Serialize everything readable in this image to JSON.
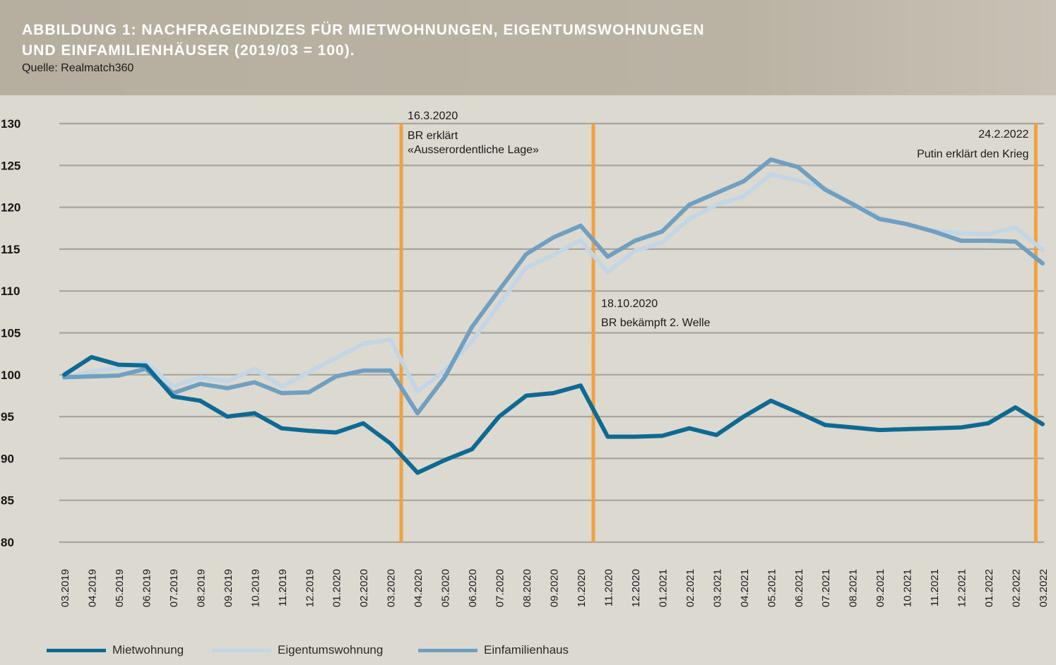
{
  "header": {
    "title_line1": "ABBILDUNG 1: NACHFRAGEINDIZES FÜR MIETWOHNUNGEN, EIGENTUMSWOHNUNGEN",
    "title_line2": "UND EINFAMILIENHÄUSER (2019/03 = 100).",
    "source": "Quelle: Realmatch360"
  },
  "colors": {
    "header_bg": "#b6ae9f",
    "plot_bg": "#dcd9d0",
    "grid": "#a7a59d",
    "event_line": "#f2a23c",
    "mietwohnung": "#0e6a93",
    "eigentumswohnung": "#c2d6e6",
    "einfamilienhaus": "#6f9fc1"
  },
  "chart_data": {
    "type": "line",
    "ylim": [
      80,
      130
    ],
    "yticks": [
      "80",
      "85",
      "90",
      "95",
      "100",
      "105",
      "110",
      "115",
      "120",
      "125",
      "130"
    ],
    "grid": "horizontal",
    "legend_position": "bottom",
    "x": [
      "03.2019",
      "04.2019",
      "05.2019",
      "06.2019",
      "07.2019",
      "08.2019",
      "09.2019",
      "10.2019",
      "11.2019",
      "12.2019",
      "01.2020",
      "02.2020",
      "03.2020",
      "04.2020",
      "05.2020",
      "06.2020",
      "07.2020",
      "08.2020",
      "09.2020",
      "10.2020",
      "11.2020",
      "12.2020",
      "01.2021",
      "02.2021",
      "03.2021",
      "04.2021",
      "05.2021",
      "06.2021",
      "07.2021",
      "08.2021",
      "09.2021",
      "10.2021",
      "11.2021",
      "12.2021",
      "01.2022",
      "02.2022",
      "03.2022"
    ],
    "series": [
      {
        "name": "Mietwohnung",
        "color": "#0e6a93",
        "values": [
          100.0,
          102.1,
          101.2,
          101.1,
          97.4,
          96.9,
          95.0,
          95.4,
          93.6,
          93.3,
          93.1,
          94.2,
          91.8,
          88.3,
          89.8,
          91.1,
          95.0,
          97.5,
          97.8,
          98.7,
          92.6,
          92.6,
          92.7,
          93.6,
          92.8,
          95.0,
          96.9,
          95.5,
          94.0,
          93.7,
          93.4,
          93.5,
          93.6,
          93.7,
          94.2,
          96.1,
          94.1
        ]
      },
      {
        "name": "Eigentumswohnung",
        "color": "#c2d6e6",
        "values": [
          99.6,
          100.4,
          100.8,
          101.5,
          98.6,
          99.7,
          99.2,
          100.7,
          98.6,
          100.3,
          102.0,
          103.7,
          104.2,
          98.0,
          100.5,
          104.0,
          108.4,
          112.8,
          114.3,
          116.1,
          112.2,
          114.8,
          115.8,
          118.6,
          120.3,
          121.3,
          123.9,
          123.2,
          122.3,
          120.5,
          118.8,
          117.9,
          117.2,
          116.9,
          116.8,
          117.6,
          114.9
        ]
      },
      {
        "name": "Einfamilienhaus",
        "color": "#6f9fc1",
        "values": [
          99.7,
          99.8,
          99.9,
          100.7,
          97.8,
          98.9,
          98.4,
          99.1,
          97.8,
          97.9,
          99.8,
          100.5,
          100.5,
          95.4,
          99.7,
          105.7,
          110.1,
          114.4,
          116.4,
          117.8,
          114.1,
          116.0,
          117.1,
          120.3,
          121.7,
          123.1,
          125.7,
          124.8,
          122.1,
          120.4,
          118.6,
          118.0,
          117.1,
          116.0,
          116.0,
          115.9,
          113.3
        ]
      }
    ],
    "events": [
      {
        "at": "03.2020",
        "offset": 0.4,
        "date": "16.3.2020",
        "text_lines": [
          "BR erklärt",
          "«Ausserordentliche Lage»"
        ],
        "label_side": "right-top"
      },
      {
        "at": "10.2020",
        "offset": 0.47,
        "date": "18.10.2020",
        "text_lines": [
          "BR bekämpft 2. Welle"
        ],
        "label_side": "right-middle"
      },
      {
        "at": "02.2022",
        "offset": 0.75,
        "date": "24.2.2022",
        "text_lines": [
          "Putin erklärt den Krieg"
        ],
        "label_side": "left-top"
      }
    ]
  }
}
